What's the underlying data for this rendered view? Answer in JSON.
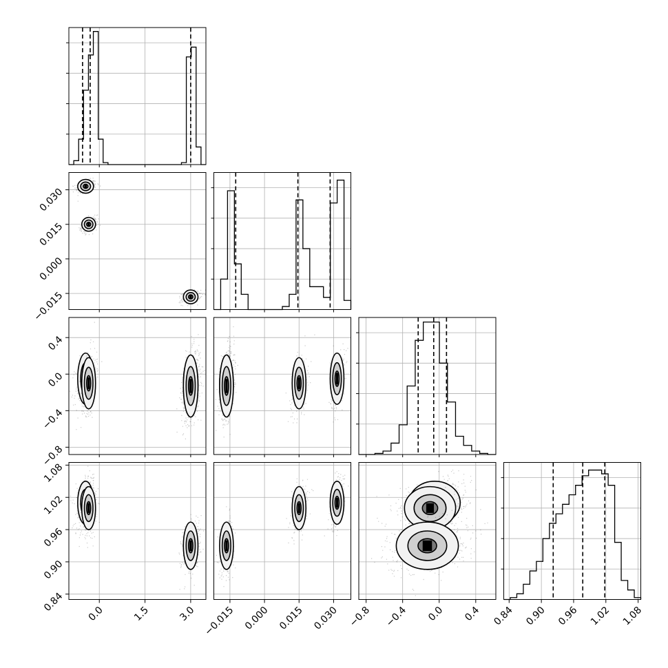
{
  "chart_data": {
    "type": "corner",
    "title": "",
    "grid": true,
    "parameters": [
      {
        "range": [
          -1.0,
          3.5
        ],
        "ticks": [
          0.0,
          1.5,
          3.0
        ],
        "tick_labels": [
          "0.0",
          "1.5",
          "3.0"
        ],
        "quantiles": [
          -0.55,
          -0.3,
          3.0
        ],
        "hist": [
          0.0,
          0.02,
          0.13,
          0.38,
          0.56,
          0.68,
          0.13,
          0.01,
          0.0,
          0.0,
          0.0,
          0.0,
          0.0,
          0.0,
          0.0,
          0.0,
          0.0,
          0.0,
          0.0,
          0.0,
          0.0,
          0.0,
          0.0,
          0.01,
          0.55,
          0.6,
          0.09,
          0.0
        ],
        "hist_ylim": [
          0,
          0.7
        ]
      },
      {
        "range": [
          -0.022,
          0.0375
        ],
        "ticks": [
          -0.015,
          0.0,
          0.015,
          0.03
        ],
        "tick_labels": [
          "−0.015",
          "0.000",
          "0.015",
          "0.030"
        ],
        "quantiles": [
          -0.0125,
          0.0145,
          0.0285
        ],
        "hist": [
          0.0,
          0.2,
          0.78,
          0.3,
          0.1,
          0.0,
          0.0,
          0.0,
          0.0,
          0.0,
          0.02,
          0.1,
          0.72,
          0.4,
          0.15,
          0.15,
          0.08,
          0.7,
          0.85,
          0.06
        ],
        "hist_ylim": [
          0,
          0.9
        ]
      },
      {
        "range": [
          -0.88,
          0.62
        ],
        "ticks": [
          -0.8,
          -0.4,
          0.0,
          0.4
        ],
        "tick_labels": [
          "−0.8",
          "−0.4",
          "0.0",
          "0.4"
        ],
        "quantiles": [
          -0.23,
          -0.06,
          0.08
        ],
        "hist": [
          0.0,
          0.0,
          0.005,
          0.015,
          0.05,
          0.13,
          0.3,
          0.5,
          0.58,
          0.58,
          0.4,
          0.23,
          0.08,
          0.04,
          0.015,
          0.005,
          0.0
        ],
        "hist_ylim": [
          0,
          0.6
        ]
      },
      {
        "range": [
          0.83,
          1.085
        ],
        "ticks": [
          0.84,
          0.9,
          0.96,
          1.02,
          1.08
        ],
        "tick_labels": [
          "0.84",
          "0.90",
          "0.96",
          "1.02",
          "1.08"
        ],
        "quantiles": [
          0.922,
          0.977,
          1.018
        ],
        "hist": [
          0.0,
          0.01,
          0.03,
          0.08,
          0.15,
          0.2,
          0.32,
          0.4,
          0.45,
          0.5,
          0.55,
          0.6,
          0.65,
          0.68,
          0.68,
          0.66,
          0.6,
          0.3,
          0.1,
          0.05,
          0.01
        ],
        "hist_ylim": [
          0,
          0.72
        ]
      }
    ],
    "clusters": [
      {
        "mean": [
          -0.45,
          0.0315,
          -0.05,
          1.01
        ],
        "sd": [
          0.13,
          0.0012,
          0.14,
          0.02
        ]
      },
      {
        "mean": [
          -0.35,
          0.015,
          -0.1,
          1.0
        ],
        "sd": [
          0.1,
          0.0014,
          0.14,
          0.02
        ]
      },
      {
        "mean": [
          3.0,
          -0.0165,
          -0.12,
          0.93
        ],
        "sd": [
          0.12,
          0.0012,
          0.16,
          0.022
        ]
      },
      {
        "mean": [
          3.0,
          -0.0165,
          -0.13,
          0.93
        ],
        "sd": [
          0.12,
          0.0012,
          0.17,
          0.022
        ]
      }
    ],
    "contour_levels": [
      0.22,
      0.55,
      1.0
    ]
  }
}
